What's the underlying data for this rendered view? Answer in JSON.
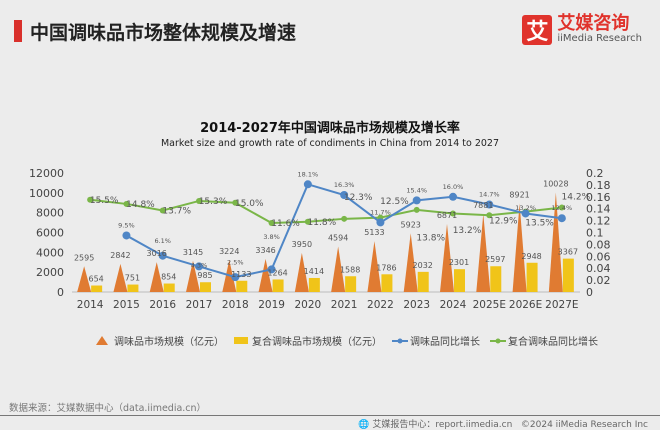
{
  "header": {
    "title": "中国调味品市场整体规模及增速"
  },
  "logo": {
    "mark": "艾",
    "cn": "艾媒咨询",
    "en": "iiMedia Research"
  },
  "footer": {
    "source": "数据来源：艾媒数据中心（data.iimedia.cn）",
    "report": "艾媒报告中心：report.iimedia.cn",
    "copyright": "©2024  iiMedia Research  Inc"
  },
  "colors": {
    "seasoning": "#e07b32",
    "compound": "#f0c419",
    "seasoning_growth": "#4f86c6",
    "compound_growth": "#7ab648"
  },
  "chart_data": {
    "type": "bar",
    "title": "2014-2027年中国调味品市场规模及增长率",
    "subtitle": "Market size and growth rate of  condiments in China from 2014 to 2027",
    "categories": [
      "2014",
      "2015",
      "2016",
      "2017",
      "2018",
      "2019",
      "2020",
      "2021",
      "2022",
      "2023",
      "2024",
      "2025E",
      "2026E",
      "2027E"
    ],
    "ylim": [
      0,
      12000
    ],
    "yticks": [
      "0",
      "2000",
      "4000",
      "6000",
      "8000",
      "10000",
      "12000"
    ],
    "y2lim": [
      0,
      0.2
    ],
    "y2ticks": [
      "0",
      "0.02",
      "0.04",
      "0.06",
      "0.08",
      "0.1",
      "0.12",
      "0.14",
      "0.16",
      "0.18",
      "0.2"
    ],
    "legend": "bottom",
    "series": [
      {
        "name": "调味品市场规模（亿元）",
        "kind": "triangle",
        "axis": "left",
        "values": [
          2595,
          2842,
          3016,
          3145,
          3224,
          3346,
          3950,
          4594,
          5133,
          5923,
          6871,
          7881,
          8921,
          10028
        ],
        "labels": [
          "2595",
          "2842",
          "3016",
          "3145",
          "3224",
          "3346",
          "3950",
          "4594",
          "5133",
          "5923",
          "6871",
          "7881",
          "8921",
          "10028"
        ]
      },
      {
        "name": "复合调味品市场规模（亿元）",
        "kind": "bar",
        "axis": "left",
        "values": [
          654,
          751,
          854,
          985,
          1133,
          1264,
          1414,
          1588,
          1786,
          2032,
          2301,
          2597,
          2948,
          3367
        ],
        "labels": [
          "654",
          "751",
          "854",
          "985",
          "1133",
          "1264",
          "1414",
          "1588",
          "1786",
          "2032",
          "2301",
          "2597",
          "2948",
          "3367"
        ]
      },
      {
        "name": "调味品同比增长",
        "kind": "line",
        "axis": "right",
        "values": [
          null,
          0.095,
          0.061,
          0.043,
          0.025,
          0.038,
          0.181,
          0.163,
          0.117,
          0.154,
          0.16,
          0.147,
          0.132,
          0.124
        ],
        "labels": [
          "",
          "9.5%",
          "6.1%",
          "4.3%",
          "2.5%",
          "3.8%",
          "18.1%",
          "16.3%",
          "11.7%",
          "15.4%",
          "16.0%",
          "14.7%",
          "13.2%",
          "12.4%"
        ]
      },
      {
        "name": "复合调味品同比增长",
        "kind": "line",
        "axis": "right",
        "values": [
          0.155,
          0.148,
          0.137,
          0.153,
          0.15,
          0.116,
          0.118,
          0.123,
          0.125,
          0.138,
          0.132,
          0.129,
          0.135,
          0.142
        ],
        "labels": [
          "15.5%",
          "14.8%",
          "13.7%",
          "15.3%",
          "15.0%",
          "11.6%",
          "11.8%",
          "12.3%",
          "12.5%",
          "13.8%",
          "13.2%",
          "12.9%",
          "13.5%",
          "14.2%"
        ]
      }
    ]
  }
}
